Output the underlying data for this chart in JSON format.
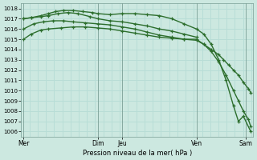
{
  "xlabel": "Pression niveau de la mer( hPa )",
  "bg_color": "#cce8e0",
  "grid_color": "#b8ddd6",
  "line_color": "#2d6e2d",
  "ylim": [
    1005.5,
    1018.5
  ],
  "yticks": [
    1006,
    1007,
    1008,
    1009,
    1010,
    1011,
    1012,
    1013,
    1014,
    1015,
    1016,
    1017,
    1018
  ],
  "day_positions": [
    0.0,
    3.0,
    4.0,
    7.0,
    9.0
  ],
  "day_labels": [
    "Mer",
    "Dim",
    "Jeu",
    "Ven",
    "Sam"
  ],
  "xlim": [
    -0.1,
    9.3
  ],
  "lines": [
    {
      "x": [
        0.0,
        0.3,
        0.7,
        1.0,
        1.5,
        2.0,
        2.5,
        3.0,
        3.5,
        4.0,
        4.5,
        5.0,
        5.5,
        6.0,
        6.5,
        7.0,
        7.3,
        7.6,
        7.9,
        8.1,
        8.3,
        8.5,
        8.7,
        8.9,
        9.1,
        9.2
      ],
      "y": [
        1015.0,
        1015.5,
        1015.9,
        1016.0,
        1016.1,
        1016.2,
        1016.2,
        1016.1,
        1016.0,
        1015.8,
        1015.6,
        1015.4,
        1015.2,
        1015.1,
        1015.0,
        1014.9,
        1014.5,
        1014.0,
        1013.5,
        1013.0,
        1012.5,
        1012.0,
        1011.5,
        1010.8,
        1010.2,
        1009.8
      ]
    },
    {
      "x": [
        0.0,
        0.4,
        0.8,
        1.2,
        1.6,
        2.0,
        2.5,
        3.0,
        3.5,
        4.0,
        4.5,
        5.0,
        5.5,
        6.0,
        6.5,
        7.0,
        7.3,
        7.6,
        7.9,
        8.2,
        8.5,
        8.7,
        8.9,
        9.1,
        9.2
      ],
      "y": [
        1016.0,
        1016.5,
        1016.7,
        1016.8,
        1016.8,
        1016.7,
        1016.6,
        1016.5,
        1016.4,
        1016.2,
        1016.0,
        1015.7,
        1015.4,
        1015.2,
        1015.0,
        1015.0,
        1014.5,
        1013.8,
        1012.8,
        1011.5,
        1010.0,
        1009.0,
        1008.0,
        1007.2,
        1006.5
      ]
    },
    {
      "x": [
        0.0,
        0.3,
        0.7,
        1.0,
        1.3,
        1.6,
        2.0,
        2.4,
        2.8,
        3.0,
        3.5,
        4.0,
        4.5,
        5.0,
        5.5,
        6.0,
        6.5,
        7.0,
        7.3,
        7.6,
        7.9,
        8.2,
        8.5,
        8.7,
        8.9,
        9.2
      ],
      "y": [
        1017.0,
        1017.1,
        1017.3,
        1017.5,
        1017.7,
        1017.8,
        1017.8,
        1017.7,
        1017.6,
        1017.5,
        1017.4,
        1017.5,
        1017.5,
        1017.4,
        1017.3,
        1017.0,
        1016.5,
        1016.0,
        1015.5,
        1014.5,
        1013.0,
        1011.0,
        1008.5,
        1007.0,
        1007.5,
        1006.0
      ]
    },
    {
      "x": [
        0.0,
        0.3,
        0.7,
        1.0,
        1.4,
        1.8,
        2.2,
        2.7,
        3.0,
        3.5,
        4.0,
        4.5,
        5.0,
        5.5,
        6.0,
        6.5,
        7.0
      ],
      "y": [
        1017.0,
        1017.1,
        1017.2,
        1017.3,
        1017.5,
        1017.6,
        1017.5,
        1017.2,
        1017.0,
        1016.8,
        1016.7,
        1016.5,
        1016.3,
        1016.0,
        1015.8,
        1015.5,
        1015.2
      ]
    }
  ],
  "lw": 1.0,
  "ms": 3.0
}
